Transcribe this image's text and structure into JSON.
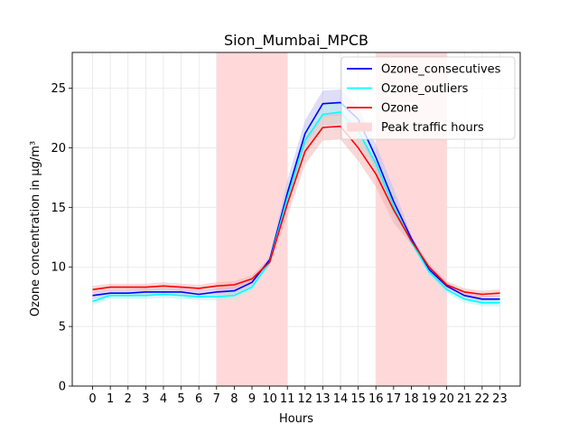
{
  "chart_data": {
    "type": "line",
    "title": "Sion_Mumbai_MPCB",
    "xlabel": "Hours",
    "ylabel": "Ozone concentration in µg/m³",
    "x": [
      0,
      1,
      2,
      3,
      4,
      5,
      6,
      7,
      8,
      9,
      10,
      11,
      12,
      13,
      14,
      15,
      16,
      17,
      18,
      19,
      20,
      21,
      22,
      23
    ],
    "xlim": [
      -1.15,
      24.15
    ],
    "ylim": [
      0,
      28
    ],
    "yticks": [
      0,
      5,
      10,
      15,
      20,
      25
    ],
    "grid": true,
    "legend_position": "top-right",
    "series": [
      {
        "name": "Ozone_consecutives",
        "color": "#0000ff",
        "band_color": "#b9b3f0",
        "values": [
          7.6,
          7.8,
          7.8,
          7.9,
          7.9,
          7.9,
          7.7,
          7.9,
          8.0,
          8.7,
          10.6,
          16.2,
          21.2,
          23.7,
          23.8,
          22.4,
          19.2,
          15.5,
          12.4,
          9.8,
          8.4,
          7.6,
          7.3,
          7.3
        ],
        "band_halfwidth": 0.3,
        "band_halfwidth_peak": 1.1
      },
      {
        "name": "Ozone_outliers",
        "color": "#00ffff",
        "band_color": "#a8f0ec",
        "values": [
          7.1,
          7.6,
          7.6,
          7.6,
          7.7,
          7.6,
          7.5,
          7.5,
          7.6,
          8.3,
          10.4,
          15.8,
          20.6,
          22.8,
          23.0,
          21.4,
          18.7,
          15.1,
          12.1,
          9.6,
          8.1,
          7.3,
          7.0,
          7.0
        ],
        "band_halfwidth": 0.3,
        "band_halfwidth_peak": 1.0
      },
      {
        "name": "Ozone",
        "color": "#ff0000",
        "band_color": "#f2a8a8",
        "values": [
          8.1,
          8.3,
          8.3,
          8.3,
          8.4,
          8.3,
          8.2,
          8.4,
          8.5,
          9.0,
          10.4,
          15.3,
          19.7,
          21.7,
          21.8,
          20.0,
          17.8,
          14.8,
          12.2,
          10.0,
          8.5,
          7.9,
          7.7,
          7.8
        ],
        "band_halfwidth": 0.3,
        "band_halfwidth_peak": 1.1
      }
    ],
    "shaded_regions": [
      {
        "name": "Peak traffic hours",
        "from": 7,
        "to": 11,
        "color": "#ffd9da"
      },
      {
        "name": "Peak traffic hours",
        "from": 16,
        "to": 20,
        "color": "#ffd9da"
      }
    ],
    "legend": [
      "Ozone_consecutives",
      "Ozone_outliers",
      "Ozone",
      "Peak traffic hours"
    ]
  }
}
